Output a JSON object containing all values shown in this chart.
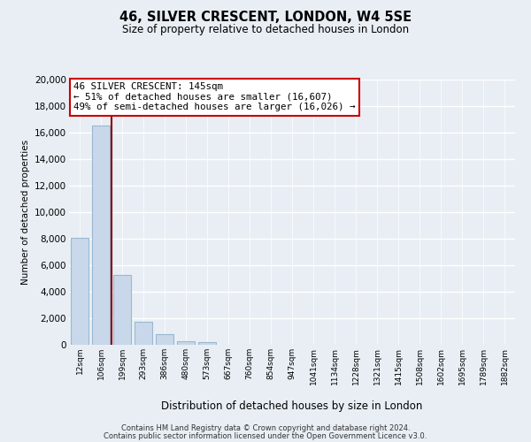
{
  "title": "46, SILVER CRESCENT, LONDON, W4 5SE",
  "subtitle": "Size of property relative to detached houses in London",
  "xlabel": "Distribution of detached houses by size in London",
  "ylabel": "Number of detached properties",
  "bar_labels": [
    "12sqm",
    "106sqm",
    "199sqm",
    "293sqm",
    "386sqm",
    "480sqm",
    "573sqm",
    "667sqm",
    "760sqm",
    "854sqm",
    "947sqm",
    "1041sqm",
    "1134sqm",
    "1228sqm",
    "1321sqm",
    "1415sqm",
    "1508sqm",
    "1602sqm",
    "1695sqm",
    "1789sqm",
    "1882sqm"
  ],
  "bar_values": [
    8100,
    16500,
    5300,
    1750,
    800,
    300,
    230,
    0,
    0,
    0,
    0,
    0,
    0,
    0,
    0,
    0,
    0,
    0,
    0,
    0,
    0
  ],
  "bar_color": "#c8d8ea",
  "bar_edge_color": "#9ab8d0",
  "marker_line_color": "#8b0000",
  "ylim": [
    0,
    20000
  ],
  "yticks": [
    0,
    2000,
    4000,
    6000,
    8000,
    10000,
    12000,
    14000,
    16000,
    18000,
    20000
  ],
  "annotation_title": "46 SILVER CRESCENT: 145sqm",
  "annotation_line1": "← 51% of detached houses are smaller (16,607)",
  "annotation_line2": "49% of semi-detached houses are larger (16,026) →",
  "annotation_box_color": "#ffffff",
  "annotation_box_edge": "#cc0000",
  "footer_line1": "Contains HM Land Registry data © Crown copyright and database right 2024.",
  "footer_line2": "Contains public sector information licensed under the Open Government Licence v3.0.",
  "bg_color": "#e8eef4",
  "grid_color": "#ffffff",
  "plot_bg_color": "#e8eef4"
}
